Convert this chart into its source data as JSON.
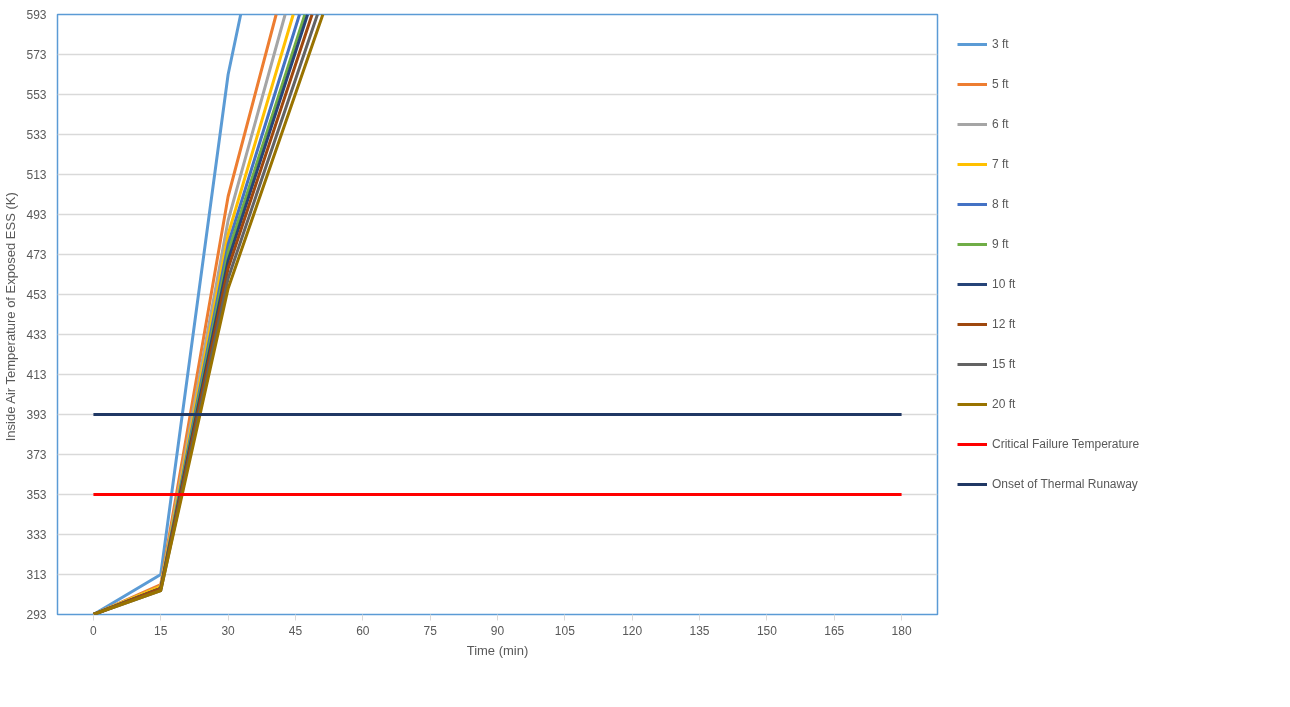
{
  "chart_data": {
    "type": "line",
    "xlabel": "Time (min)",
    "ylabel": "Inside Air Temperature  of Exposed ESS (K)",
    "xlim": [
      -8,
      188
    ],
    "xticks": [
      0,
      15,
      30,
      45,
      60,
      75,
      90,
      105,
      120,
      135,
      150,
      165,
      180
    ],
    "ylim": [
      293,
      593
    ],
    "yticks": [
      293,
      313,
      333,
      353,
      373,
      393,
      413,
      433,
      453,
      473,
      493,
      513,
      533,
      553,
      573,
      593
    ],
    "grid": "y",
    "legend": "right",
    "marker": "none",
    "line_style": "solid",
    "series": [
      {
        "name": "3 ft",
        "color": "#5b9bd5",
        "x": [
          0,
          15,
          30,
          32.8
        ],
        "values": [
          293,
          313,
          563,
          593
        ]
      },
      {
        "name": "5 ft",
        "color": "#ed7d31",
        "x": [
          0,
          15,
          30,
          40.7
        ],
        "values": [
          293,
          308,
          502,
          593
        ]
      },
      {
        "name": "6 ft",
        "color": "#a5a5a5",
        "x": [
          0,
          15,
          30,
          42.7
        ],
        "values": [
          293,
          307,
          490,
          593
        ]
      },
      {
        "name": "7 ft",
        "color": "#ffc000",
        "x": [
          0,
          15,
          30,
          44.5
        ],
        "values": [
          293,
          307,
          483,
          593
        ]
      },
      {
        "name": "8 ft",
        "color": "#4472c4",
        "x": [
          0,
          15,
          30,
          45.9
        ],
        "values": [
          293,
          306,
          478,
          593
        ]
      },
      {
        "name": "9 ft",
        "color": "#70ad47",
        "x": [
          0,
          15,
          30,
          47.1
        ],
        "values": [
          293,
          306,
          474,
          593
        ]
      },
      {
        "name": "10 ft",
        "color": "#264478",
        "x": [
          0,
          15,
          30,
          47.7
        ],
        "values": [
          293,
          306,
          470,
          593
        ]
      },
      {
        "name": "12 ft",
        "color": "#9e480e",
        "x": [
          0,
          15,
          30,
          48.7
        ],
        "values": [
          293,
          306,
          466,
          593
        ]
      },
      {
        "name": "15 ft",
        "color": "#636363",
        "x": [
          0,
          15,
          30,
          49.9
        ],
        "values": [
          293,
          305,
          461,
          593
        ]
      },
      {
        "name": "20 ft",
        "color": "#997300",
        "x": [
          0,
          15,
          30,
          51.1
        ],
        "values": [
          293,
          305,
          456,
          593
        ]
      },
      {
        "name": "Critical Failure Temperature",
        "color": "#ff0000",
        "x": [
          0,
          180
        ],
        "values": [
          353,
          353
        ]
      },
      {
        "name": "Onset of Thermal Runaway",
        "color": "#203864",
        "x": [
          0,
          180
        ],
        "values": [
          393,
          393
        ]
      }
    ]
  }
}
